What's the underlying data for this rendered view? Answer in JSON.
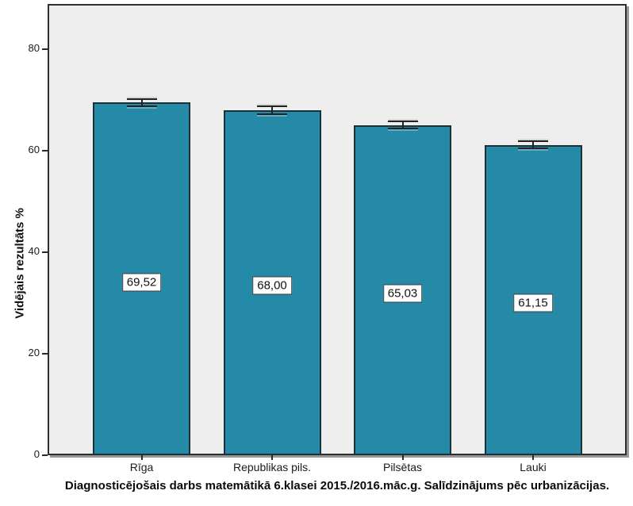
{
  "chart_data": {
    "type": "bar",
    "title": "Diagnosticējošais darbs matemātikā 6.klasei 2015./2016.māc.g. Salīdzinājums pēc urbanizācijas.",
    "xlabel": "",
    "ylabel": "Vidējais rezultāts %",
    "categories": [
      "Rīga",
      "Republikas pils.",
      "Pilsētas",
      "Lauki"
    ],
    "values": [
      69.52,
      68.0,
      65.03,
      61.15
    ],
    "value_labels": [
      "69,52",
      "68,00",
      "65,03",
      "61,15"
    ],
    "error": [
      0.7,
      0.75,
      0.7,
      0.75
    ],
    "yticks": [
      0,
      20,
      40,
      60,
      80
    ],
    "ylim": [
      0,
      88.9
    ],
    "grid": false,
    "legend_position": "none",
    "bar_color": "#2589a8",
    "bar_border_color": "#1d3038",
    "plot_bg": "#eeeeee",
    "axis_color": "#2b2b2b",
    "value_box_bg": "#ffffff",
    "value_box_border": "#3c3c3c"
  }
}
